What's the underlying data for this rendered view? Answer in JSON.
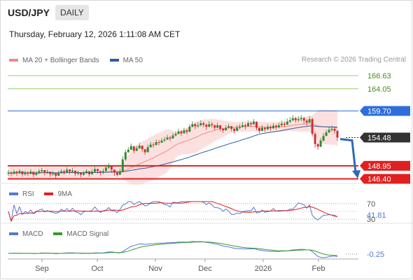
{
  "header": {
    "symbol": "USD/JPY",
    "period": "DAILY",
    "timestamp": "Thursday, February 12, 2026 1:11:08 AM CET"
  },
  "legend": {
    "items": [
      {
        "label": "MA 20 + Bollinger Bands",
        "color": "#f08a86"
      },
      {
        "label": "MA 50",
        "color": "#2e5e9e"
      }
    ],
    "copyright": "Research © 2026 Trading Central"
  },
  "colors": {
    "up": "#2e8b2e",
    "down": "#d23030",
    "ma20": "#f08a86",
    "ma50": "#2e5e9e",
    "band": "#fbd5d5",
    "resistance": "#9bcf6b",
    "pivot": "#2e6edb",
    "support": "#e02020",
    "arrow": "#2e6ab3",
    "rsi": "#5577d6",
    "rsi_ma": "#e02020",
    "macd": "#5577d6",
    "macd_signal": "#3a9a2a"
  },
  "chart_data": [
    {
      "type": "candlestick",
      "title": "USD/JPY",
      "ylim": [
        145.5,
        168.0
      ],
      "x_labels": [
        "Sep",
        "Oct",
        "Nov",
        "Dec",
        "2026",
        "Feb"
      ],
      "levels": [
        {
          "value": 166.63,
          "label": "166.63",
          "kind": "resistance"
        },
        {
          "value": 164.05,
          "label": "164.05",
          "kind": "resistance"
        },
        {
          "value": 159.7,
          "label": "159.70",
          "kind": "pivot"
        },
        {
          "value": 154.48,
          "label": "154.48",
          "kind": "current"
        },
        {
          "value": 148.95,
          "label": "148.95",
          "kind": "support"
        },
        {
          "value": 146.4,
          "label": "146.40",
          "kind": "support"
        }
      ],
      "arrow": {
        "from": 154.2,
        "to": 146.6
      },
      "close": [
        147.6,
        147.4,
        147.8,
        147.5,
        147.9,
        147.3,
        147.6,
        147.4,
        147.8,
        147.2,
        147.5,
        147.9,
        148.1,
        147.6,
        147.8,
        147.3,
        147.5,
        147.0,
        147.6,
        147.9,
        147.7,
        148.2,
        147.8,
        148.0,
        147.4,
        147.6,
        147.2,
        147.5,
        147.9,
        147.3,
        147.8,
        148.3,
        147.9,
        147.6,
        147.9,
        148.6,
        148.9,
        148.2,
        147.6,
        147.2,
        147.8,
        150.2,
        151.6,
        152.1,
        152.8,
        151.9,
        152.4,
        152.9,
        152.2,
        151.6,
        152.6,
        153.1,
        153.0,
        153.6,
        153.5,
        153.9,
        154.1,
        154.5,
        154.3,
        154.9,
        155.2,
        155.7,
        155.3,
        155.9,
        155.6,
        156.6,
        157.1,
        156.7,
        156.9,
        157.3,
        157.0,
        156.6,
        157.1,
        156.9,
        156.4,
        156.9,
        156.2,
        155.9,
        156.4,
        156.7,
        156.2,
        155.8,
        156.4,
        156.6,
        156.9,
        156.7,
        157.3,
        157.1,
        157.6,
        156.4,
        155.8,
        156.4,
        156.1,
        156.6,
        156.3,
        156.8,
        156.5,
        156.9,
        157.2,
        157.0,
        157.6,
        157.9,
        158.3,
        157.9,
        158.1,
        158.3,
        157.8,
        157.4,
        158.1,
        155.2,
        153.2,
        152.7,
        153.9,
        154.8,
        155.5,
        156.0,
        156.2,
        155.8,
        154.48
      ],
      "high": [
        148.1,
        147.9,
        148.2,
        148.0,
        148.3,
        147.8,
        148.0,
        147.9,
        148.3,
        147.7,
        147.9,
        148.3,
        148.6,
        148.1,
        148.2,
        147.8,
        147.9,
        147.5,
        148.0,
        148.3,
        148.2,
        148.7,
        148.3,
        148.5,
        147.9,
        148.0,
        147.7,
        147.9,
        148.3,
        147.8,
        148.3,
        148.8,
        148.4,
        148.0,
        148.4,
        149.1,
        149.5,
        148.8,
        148.2,
        147.8,
        148.4,
        150.8,
        152.1,
        152.6,
        153.3,
        152.5,
        152.9,
        153.4,
        152.8,
        152.2,
        153.1,
        153.6,
        153.5,
        154.1,
        154.0,
        154.4,
        154.6,
        155.0,
        154.8,
        155.4,
        155.7,
        156.2,
        155.9,
        156.4,
        156.2,
        157.1,
        157.7,
        157.4,
        157.5,
        157.9,
        157.6,
        157.2,
        157.7,
        157.5,
        157.0,
        157.4,
        156.8,
        156.4,
        156.9,
        157.2,
        156.8,
        156.4,
        156.9,
        157.1,
        157.5,
        157.2,
        157.8,
        157.7,
        158.1,
        157.2,
        156.4,
        156.9,
        156.6,
        157.1,
        156.9,
        157.3,
        157.1,
        157.4,
        157.8,
        157.6,
        158.2,
        158.5,
        158.9,
        158.6,
        158.7,
        158.9,
        158.5,
        158.1,
        158.7,
        158.4,
        155.6,
        153.5,
        154.4,
        155.4,
        156.0,
        156.6,
        156.8,
        156.5,
        156.0
      ],
      "low": [
        147.0,
        146.9,
        147.2,
        147.0,
        147.3,
        146.8,
        147.0,
        146.9,
        147.2,
        146.7,
        147.0,
        147.3,
        147.5,
        147.1,
        147.3,
        146.8,
        147.0,
        146.5,
        147.1,
        147.4,
        147.2,
        147.6,
        147.3,
        147.5,
        146.9,
        147.1,
        146.7,
        147.0,
        147.4,
        146.8,
        147.2,
        147.7,
        147.4,
        147.1,
        147.3,
        147.9,
        148.3,
        147.6,
        147.0,
        146.8,
        147.2,
        147.9,
        149.9,
        151.5,
        152.1,
        151.4,
        151.8,
        152.3,
        151.7,
        151.1,
        151.9,
        152.5,
        152.5,
        153.0,
        153.0,
        153.4,
        153.6,
        154.0,
        153.8,
        154.3,
        154.7,
        155.1,
        154.8,
        155.3,
        155.1,
        155.9,
        156.5,
        156.1,
        156.4,
        156.7,
        156.5,
        156.0,
        156.5,
        156.4,
        155.9,
        156.3,
        155.7,
        155.4,
        155.8,
        156.2,
        155.7,
        155.3,
        155.8,
        156.1,
        156.4,
        156.1,
        156.7,
        156.6,
        157.0,
        155.9,
        155.3,
        155.8,
        155.6,
        156.0,
        155.8,
        156.2,
        156.0,
        156.3,
        156.6,
        156.5,
        157.0,
        157.3,
        157.7,
        157.4,
        157.5,
        157.7,
        157.2,
        156.8,
        157.4,
        154.7,
        152.5,
        152.1,
        152.6,
        153.7,
        154.8,
        155.3,
        155.6,
        155.2,
        153.8
      ]
    },
    {
      "type": "line",
      "title": "RSI",
      "series": [
        {
          "name": "RSI"
        },
        {
          "name": "9MA"
        }
      ],
      "ylim": [
        25,
        75
      ],
      "levels": [
        {
          "value": 70,
          "label": "70"
        },
        {
          "value": 30,
          "label": "30"
        }
      ],
      "last_label": "41.81"
    },
    {
      "type": "line",
      "title": "MACD",
      "series": [
        {
          "name": "MACD"
        },
        {
          "name": "MACD Signal"
        }
      ],
      "last_label": "-0.25"
    }
  ]
}
